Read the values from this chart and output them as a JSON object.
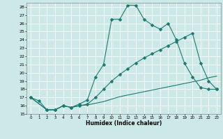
{
  "xlabel": "Humidex (Indice chaleur)",
  "bg_color": "#cce9e8",
  "line_color": "#1a7a6e",
  "grid_color": "#b0d4d2",
  "xlim": [
    -0.5,
    23.5
  ],
  "ylim": [
    15,
    28.5
  ],
  "xticks": [
    0,
    1,
    2,
    3,
    4,
    5,
    6,
    7,
    8,
    9,
    10,
    11,
    12,
    13,
    14,
    15,
    16,
    17,
    18,
    19,
    20,
    21,
    22,
    23
  ],
  "yticks": [
    15,
    16,
    17,
    18,
    19,
    20,
    21,
    22,
    23,
    24,
    25,
    26,
    27,
    28
  ],
  "line1_x": [
    0,
    1,
    2,
    3,
    4,
    5,
    6,
    7,
    8,
    9,
    10,
    11,
    12,
    13,
    14,
    15,
    16,
    17,
    18,
    19,
    20,
    21,
    22,
    23
  ],
  "line1_y": [
    17,
    16.6,
    15.5,
    15.5,
    16.0,
    15.8,
    16.2,
    16.7,
    19.5,
    21.0,
    26.5,
    26.5,
    28.2,
    28.2,
    26.5,
    25.8,
    25.3,
    26.0,
    24.0,
    21.2,
    19.5,
    18.2,
    18.0,
    18.0
  ],
  "line2_x": [
    0,
    2,
    3,
    4,
    5,
    6,
    7,
    8,
    9,
    10,
    11,
    12,
    13,
    14,
    15,
    16,
    17,
    18,
    19,
    20,
    21,
    22,
    23
  ],
  "line2_y": [
    17.0,
    15.5,
    15.5,
    16.0,
    15.8,
    16.0,
    16.2,
    17.0,
    18.0,
    19.0,
    19.8,
    20.5,
    21.2,
    21.8,
    22.3,
    22.8,
    23.3,
    23.8,
    24.3,
    24.8,
    21.2,
    19.0,
    18.0
  ],
  "line3_x": [
    0,
    2,
    3,
    4,
    5,
    6,
    7,
    8,
    9,
    10,
    11,
    12,
    13,
    14,
    15,
    16,
    17,
    18,
    19,
    20,
    21,
    22,
    23
  ],
  "line3_y": [
    17.0,
    15.5,
    15.5,
    16.0,
    15.8,
    16.0,
    16.1,
    16.3,
    16.5,
    16.8,
    17.1,
    17.3,
    17.5,
    17.7,
    17.9,
    18.1,
    18.3,
    18.5,
    18.7,
    18.9,
    19.1,
    19.4,
    19.6
  ]
}
